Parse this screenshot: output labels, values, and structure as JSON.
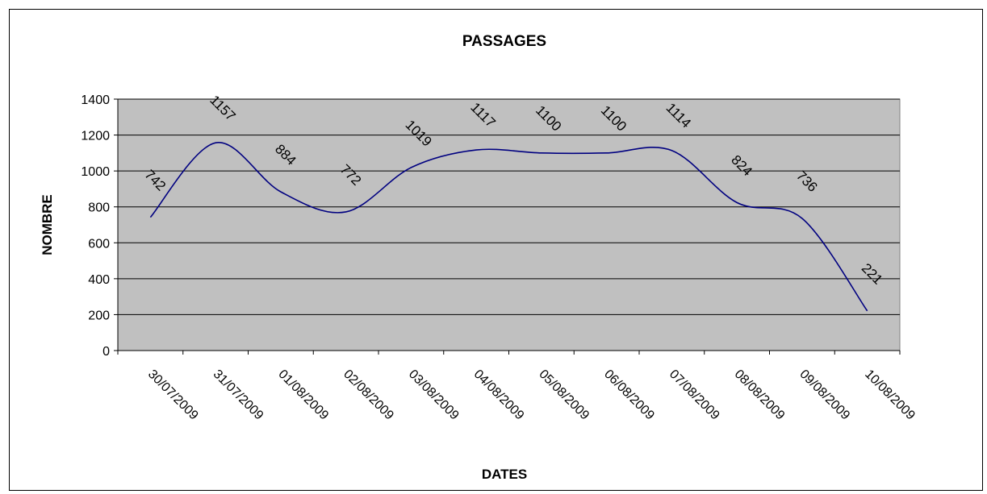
{
  "chart_data": {
    "type": "line",
    "title": "PASSAGES",
    "xlabel": "DATES",
    "ylabel": "NOMBRE",
    "ylim": [
      0,
      1400
    ],
    "yticks": [
      "0",
      "200",
      "400",
      "600",
      "800",
      "1000",
      "1200",
      "1400"
    ],
    "grid": true,
    "legend": "none",
    "categories": [
      "30/07/2009",
      "31/07/2009",
      "01/08/2009",
      "02/08/2009",
      "03/08/2009",
      "04/08/2009",
      "05/08/2009",
      "06/08/2009",
      "07/08/2009",
      "08/08/2009",
      "09/08/2009",
      "10/08/2009"
    ],
    "series": [
      {
        "values": [
          742,
          1157,
          884,
          772,
          1019,
          1117,
          1100,
          1100,
          1114,
          824,
          736,
          221
        ],
        "labels": [
          "742",
          "1157",
          "884",
          "772",
          "1019",
          "1117",
          "1100",
          "1100",
          "1114",
          "824",
          "736",
          "221"
        ]
      }
    ],
    "colors": {
      "plot_background": "#c0c0c0",
      "line": "#000080",
      "grid": "#000000"
    }
  }
}
